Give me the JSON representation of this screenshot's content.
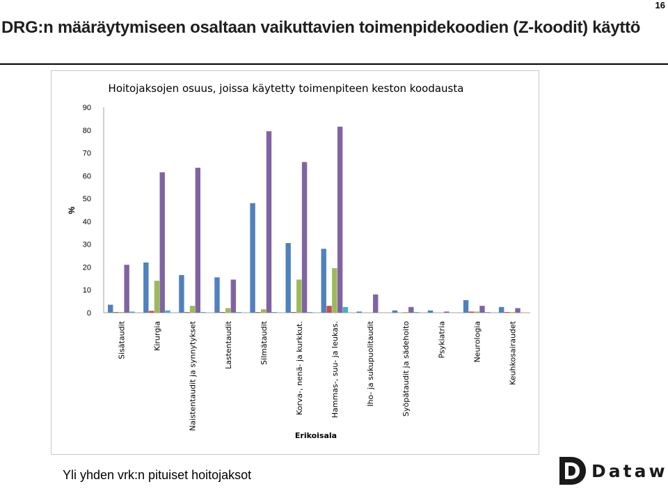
{
  "slide": {
    "page_number": "16",
    "title": "DRG:n määräytymiseen osaltaan vaikuttavien toimenpidekoodien (Z-koodit) käyttö",
    "caption": "Yli yhden vrk:n pituiset hoitojaksot",
    "logo_text": "Datawell"
  },
  "chart_data": {
    "type": "bar",
    "title": "Hoitojaksojen osuus, joissa käytetty toimenpiteen keston koodausta",
    "xlabel": "Erikoisala",
    "ylabel": "%",
    "ylim": [
      0,
      90
    ],
    "yticks": [
      0,
      10,
      20,
      30,
      40,
      50,
      60,
      70,
      80,
      90
    ],
    "grid": false,
    "legend_position": "right",
    "categories": [
      "Sisätaudit",
      "Kirurgia",
      "Naistentaudit ja synnytykset",
      "Lastentaudit",
      "Silmätaudit",
      "Korva-, nenä- ja kurkkut.",
      "Hammas-, suu- ja leukas.",
      "Iho- ja sukupuolitaudit",
      "Syöpätaudit ja sädehoito",
      "Psykiatria",
      "Neurologia",
      "Keuhkosairaudet"
    ],
    "series": [
      {
        "color": "#4f81bd",
        "values": [
          3.5,
          22,
          16.5,
          15.5,
          48,
          30.5,
          28,
          0.5,
          1,
          1,
          5.5,
          2.5
        ]
      },
      {
        "color": "#c0504d",
        "values": [
          0.3,
          0.8,
          0.3,
          0.3,
          0.3,
          0.3,
          3,
          0,
          0,
          0,
          0.5,
          0.3
        ]
      },
      {
        "color": "#9bbb59",
        "values": [
          0.3,
          14,
          3,
          2,
          1.5,
          14.5,
          19.5,
          0,
          0.3,
          0,
          0.5,
          0.3
        ]
      },
      {
        "color": "#8064a2",
        "values": [
          21,
          61.5,
          63.5,
          14.5,
          79.5,
          66,
          81.5,
          8,
          2.5,
          0.5,
          3,
          2
        ]
      },
      {
        "color": "#4bacc6",
        "values": [
          0.5,
          1,
          0.3,
          0.3,
          0.3,
          0.3,
          2.5,
          0,
          0.3,
          0,
          0.3,
          0
        ]
      }
    ]
  }
}
